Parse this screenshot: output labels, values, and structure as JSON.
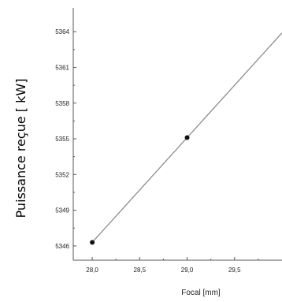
{
  "chart_data": {
    "type": "line",
    "xlabel": "Focal [mm]",
    "ylabel": "Puissance reçue [ kW]",
    "xlim": [
      27.8,
      30.0
    ],
    "ylim": [
      5344.8,
      5366.0
    ],
    "x_ticks": [
      "28,0",
      "28,5",
      "29,0",
      "29,5"
    ],
    "y_ticks": [
      "5346",
      "5349",
      "5352",
      "5355",
      "5358",
      "5361",
      "5364"
    ],
    "x_tick_values": [
      28.0,
      28.5,
      29.0,
      29.5
    ],
    "y_tick_values": [
      5346,
      5349,
      5352,
      5355,
      5358,
      5361,
      5364
    ],
    "series": [
      {
        "points": [
          {
            "x": 28.0,
            "y": 5346.3
          },
          {
            "x": 29.0,
            "y": 5355.1
          }
        ],
        "fit_line": {
          "x": [
            28.0,
            30.0
          ],
          "y": [
            5346.3,
            5363.9
          ]
        }
      }
    ],
    "colors": {
      "marker": "#111111",
      "line": "#8c8c8c",
      "axis": "#555555"
    },
    "grid": false
  }
}
